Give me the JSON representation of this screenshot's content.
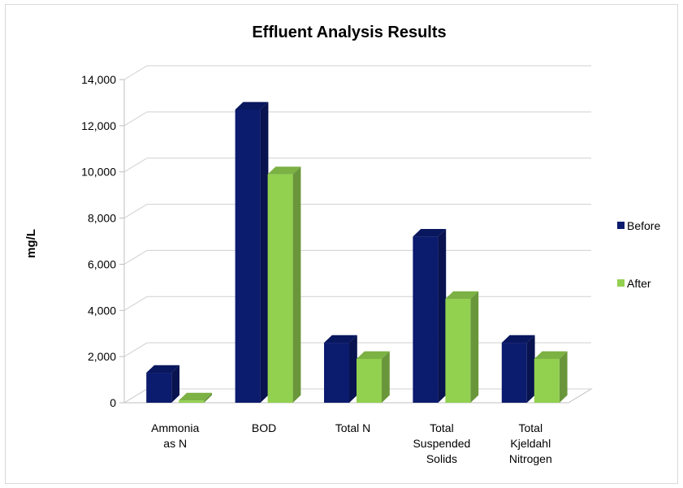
{
  "chart_data": {
    "type": "bar",
    "title": "Effluent Analysis Results",
    "xlabel": "",
    "ylabel": "mg/L",
    "ylim": [
      0,
      14000
    ],
    "y_ticks": [
      "0",
      "2,000",
      "4,000",
      "6,000",
      "8,000",
      "10,000",
      "12,000",
      "14,000"
    ],
    "categories": [
      [
        "Ammonia",
        "as N"
      ],
      [
        "BOD"
      ],
      [
        "Total N"
      ],
      [
        "Total",
        "Suspended",
        "Solids"
      ],
      [
        "Total",
        "Kjeldahl",
        "Nitrogen"
      ]
    ],
    "series": [
      {
        "name": "Before",
        "color": "#0b1b6e",
        "values": [
          1300,
          12700,
          2600,
          7200,
          2600
        ]
      },
      {
        "name": "After",
        "color": "#92d050",
        "values": [
          100,
          9900,
          1900,
          4500,
          1900
        ]
      }
    ],
    "legend_position": "right",
    "grid": true,
    "style": "3d-clustered-column"
  }
}
